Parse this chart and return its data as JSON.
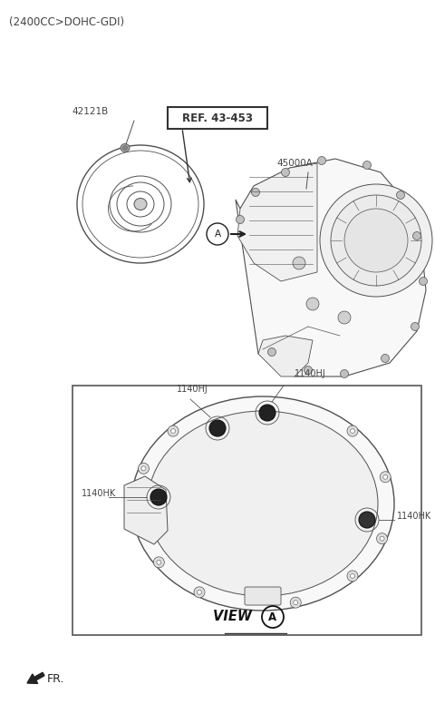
{
  "bg_color": "#ffffff",
  "title_text": "(2400CC>DOHC-GDI)",
  "title_fontsize": 9,
  "ref_label": "REF. 43-453",
  "part_42121B_label": "42121B",
  "part_45000A_label": "45000A",
  "view_label": "VIEW",
  "label_1140HJ_1": "1140HJ",
  "label_1140HJ_2": "1140HJ",
  "label_1140HK_1": "1140HK",
  "label_1140HK_2": "1140HK",
  "fr_label": "FR.",
  "line_color": "#505050",
  "dark_color": "#202020",
  "gray_color": "#888888"
}
